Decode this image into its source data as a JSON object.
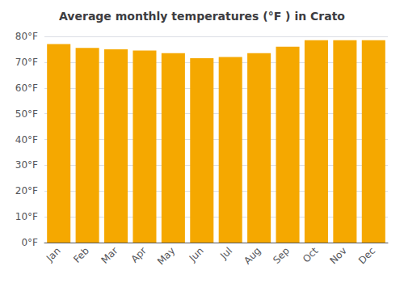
{
  "chart_data": {
    "type": "bar",
    "title": "Average monthly temperatures (°F ) in Crato",
    "categories": [
      "Jan",
      "Feb",
      "Mar",
      "Apr",
      "May",
      "Jun",
      "Jul",
      "Aug",
      "Sep",
      "Oct",
      "Nov",
      "Dec"
    ],
    "values": [
      77.0,
      75.5,
      75.0,
      74.5,
      73.5,
      71.5,
      72.0,
      73.5,
      76.0,
      78.5,
      78.5,
      78.5
    ],
    "color": "#F5A800",
    "ylim": [
      0,
      80
    ],
    "yticks": [
      {
        "value": 0,
        "label": "0°F"
      },
      {
        "value": 10,
        "label": "10°F"
      },
      {
        "value": 20,
        "label": "20°F"
      },
      {
        "value": 30,
        "label": "30°F"
      },
      {
        "value": 40,
        "label": "40°F"
      },
      {
        "value": 50,
        "label": "50°F"
      },
      {
        "value": 60,
        "label": "60°F"
      },
      {
        "value": 70,
        "label": "70°F"
      },
      {
        "value": 80,
        "label": "80°F"
      }
    ],
    "grid": true
  }
}
